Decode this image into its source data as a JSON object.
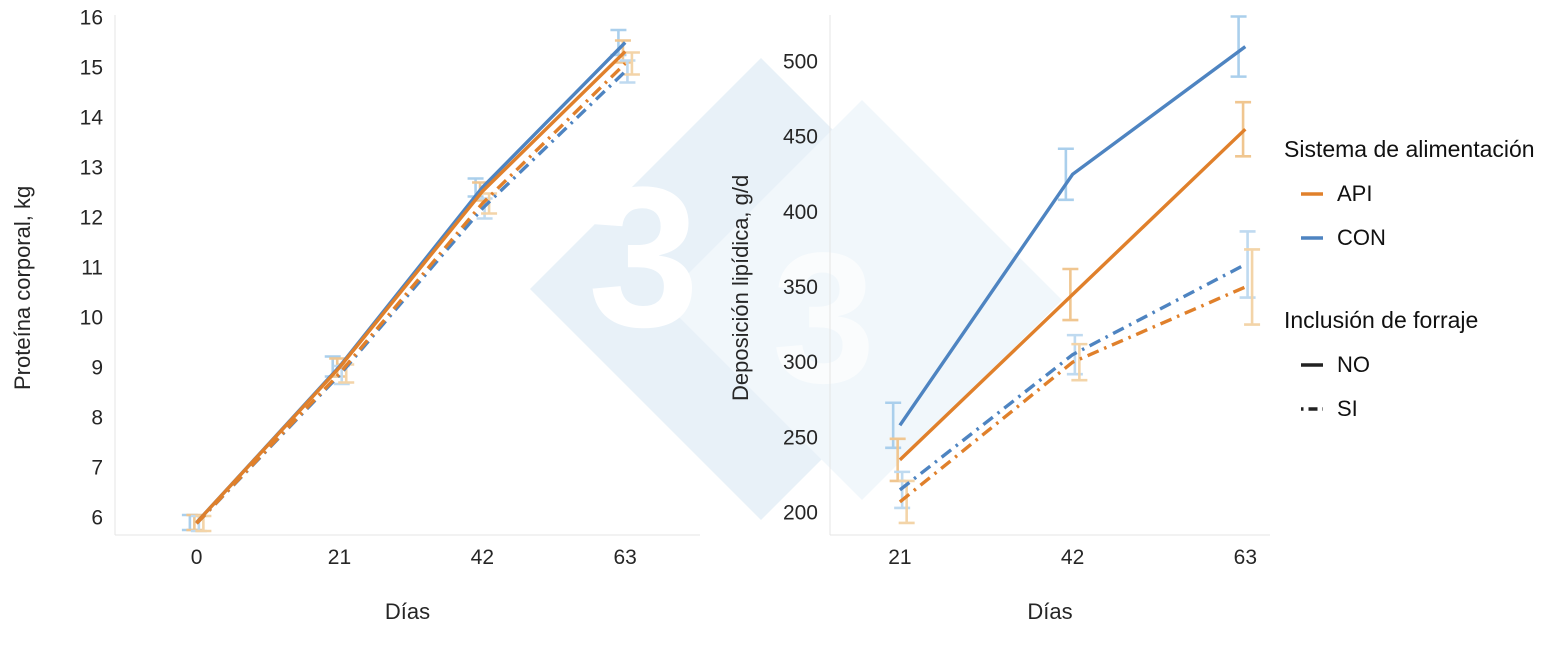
{
  "watermark": {
    "digit": "3"
  },
  "legend": {
    "groups": [
      {
        "title": "Sistema de alimentación",
        "items": [
          {
            "label": "API",
            "color": "#E0802B",
            "dash": "solid"
          },
          {
            "label": "CON",
            "color": "#4E84C1",
            "dash": "solid"
          }
        ]
      },
      {
        "title": "Inclusión de forraje",
        "items": [
          {
            "label": "NO",
            "color": "#222222",
            "dash": "solid"
          },
          {
            "label": "SI",
            "color": "#222222",
            "dash": "dashdot"
          }
        ]
      }
    ]
  },
  "chart_data": [
    {
      "type": "line",
      "title": "",
      "xlabel": "Días",
      "ylabel": "Proteína corporal, kg",
      "grid": false,
      "legend_position": "right",
      "x": [
        0,
        21,
        42,
        63
      ],
      "xticks": [
        0,
        21,
        42,
        63
      ],
      "yticks": [
        6,
        7,
        8,
        9,
        10,
        11,
        12,
        13,
        14,
        15,
        16
      ],
      "xlim": [
        -12,
        74
      ],
      "ylim": [
        5.65,
        16.05
      ],
      "series": [
        {
          "name": "CON NO",
          "color": "#4E84C1",
          "errorColor": "#AACFEC",
          "dash": "solid",
          "values": [
            5.9,
            9.02,
            12.6,
            15.5
          ],
          "errors": [
            0.15,
            0.2,
            0.18,
            0.25
          ]
        },
        {
          "name": "API NO",
          "color": "#E0802B",
          "errorColor": "#F0C690",
          "dash": "solid",
          "values": [
            5.9,
            9.0,
            12.52,
            15.32
          ],
          "errors": [
            0.15,
            0.18,
            0.18,
            0.22
          ]
        },
        {
          "name": "CON SI",
          "color": "#4E84C1",
          "errorColor": "#BFDAF0",
          "dash": "dashdot",
          "values": [
            5.88,
            8.85,
            12.18,
            14.92
          ],
          "errors": [
            0.15,
            0.18,
            0.2,
            0.22
          ]
        },
        {
          "name": "API SI",
          "color": "#E0802B",
          "errorColor": "#F3D4A8",
          "dash": "dashdot",
          "values": [
            5.88,
            8.88,
            12.28,
            15.08
          ],
          "errors": [
            0.15,
            0.18,
            0.2,
            0.22
          ]
        }
      ]
    },
    {
      "type": "line",
      "title": "",
      "xlabel": "Días",
      "ylabel": "Deposición lipídica, g/d",
      "grid": false,
      "legend_position": "right",
      "x": [
        21,
        42,
        63
      ],
      "xticks": [
        21,
        42,
        63
      ],
      "yticks": [
        200,
        250,
        300,
        350,
        400,
        450,
        500
      ],
      "xlim": [
        12.5,
        66
      ],
      "ylim": [
        185,
        531
      ],
      "series": [
        {
          "name": "CON NO",
          "color": "#4E84C1",
          "errorColor": "#AACFEC",
          "dash": "solid",
          "values": [
            258,
            425,
            510
          ],
          "errors": [
            15,
            17,
            20
          ]
        },
        {
          "name": "API NO",
          "color": "#E0802B",
          "errorColor": "#F0C690",
          "dash": "solid",
          "values": [
            235,
            345,
            455
          ],
          "errors": [
            14,
            17,
            18
          ]
        },
        {
          "name": "CON SI",
          "color": "#4E84C1",
          "errorColor": "#BFDAF0",
          "dash": "dashdot",
          "values": [
            215,
            305,
            365
          ],
          "errors": [
            12,
            13,
            22
          ]
        },
        {
          "name": "API SI",
          "color": "#E0802B",
          "errorColor": "#F3D4A8",
          "dash": "dashdot",
          "values": [
            207,
            300,
            350
          ],
          "errors": [
            14,
            12,
            25
          ]
        }
      ]
    }
  ]
}
